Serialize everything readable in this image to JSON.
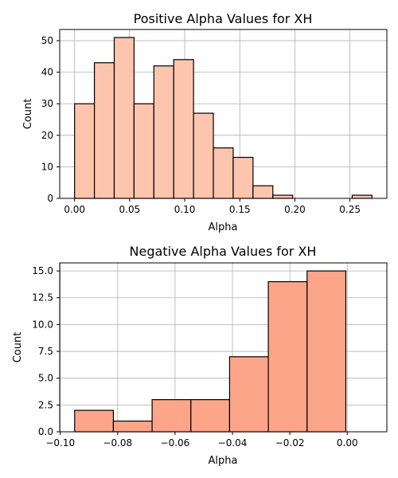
{
  "chart_data": [
    {
      "type": "bar",
      "title": "Positive Alpha Values for XH",
      "xlabel": "Alpha",
      "ylabel": "Count",
      "xlim": [
        -0.0135,
        0.2835
      ],
      "ylim": [
        0,
        53.55
      ],
      "grid": true,
      "color": "#fdc5ae",
      "edge_color": "#000000",
      "bins": [
        {
          "x0": 0.0,
          "x1": 0.018,
          "value": 30
        },
        {
          "x0": 0.018,
          "x1": 0.036,
          "value": 43
        },
        {
          "x0": 0.036,
          "x1": 0.054,
          "value": 51
        },
        {
          "x0": 0.054,
          "x1": 0.072,
          "value": 30
        },
        {
          "x0": 0.072,
          "x1": 0.09,
          "value": 42
        },
        {
          "x0": 0.09,
          "x1": 0.108,
          "value": 44
        },
        {
          "x0": 0.108,
          "x1": 0.126,
          "value": 27
        },
        {
          "x0": 0.126,
          "x1": 0.144,
          "value": 16
        },
        {
          "x0": 0.144,
          "x1": 0.162,
          "value": 13
        },
        {
          "x0": 0.162,
          "x1": 0.18,
          "value": 4
        },
        {
          "x0": 0.18,
          "x1": 0.198,
          "value": 1
        },
        {
          "x0": 0.198,
          "x1": 0.216,
          "value": 0
        },
        {
          "x0": 0.216,
          "x1": 0.234,
          "value": 0
        },
        {
          "x0": 0.234,
          "x1": 0.252,
          "value": 0
        },
        {
          "x0": 0.252,
          "x1": 0.27,
          "value": 1
        }
      ],
      "xticks": [
        0.0,
        0.05,
        0.1,
        0.15,
        0.2,
        0.25
      ],
      "xtick_labels": [
        "0.00",
        "0.05",
        "0.10",
        "0.15",
        "0.20",
        "0.25"
      ],
      "yticks": [
        0,
        10,
        20,
        30,
        40,
        50
      ],
      "ytick_labels": [
        "0",
        "10",
        "20",
        "30",
        "40",
        "50"
      ]
    },
    {
      "type": "bar",
      "title": "Negative Alpha Values for XH",
      "xlabel": "Alpha",
      "ylabel": "Count",
      "xlim": [
        -0.1002,
        0.0138
      ],
      "ylim": [
        0,
        15.75
      ],
      "grid": true,
      "color": "#fca588",
      "edge_color": "#000000",
      "bins": [
        {
          "x0": -0.095,
          "x1": -0.0815,
          "value": 2
        },
        {
          "x0": -0.0815,
          "x1": -0.068,
          "value": 1
        },
        {
          "x0": -0.068,
          "x1": -0.0545,
          "value": 3
        },
        {
          "x0": -0.0545,
          "x1": -0.041,
          "value": 3
        },
        {
          "x0": -0.041,
          "x1": -0.0275,
          "value": 7
        },
        {
          "x0": -0.0275,
          "x1": -0.014,
          "value": 14
        },
        {
          "x0": -0.014,
          "x1": -0.0005,
          "value": 15
        }
      ],
      "xticks": [
        -0.1,
        -0.08,
        -0.06,
        -0.04,
        -0.02,
        0.0
      ],
      "xtick_labels": [
        "−0.10",
        "−0.08",
        "−0.06",
        "−0.04",
        "−0.02",
        "0.00"
      ],
      "yticks": [
        0,
        2.5,
        5,
        7.5,
        10,
        12.5,
        15
      ],
      "ytick_labels": [
        "0.0",
        "2.5",
        "5.0",
        "7.5",
        "10.0",
        "12.5",
        "15.0"
      ]
    }
  ]
}
